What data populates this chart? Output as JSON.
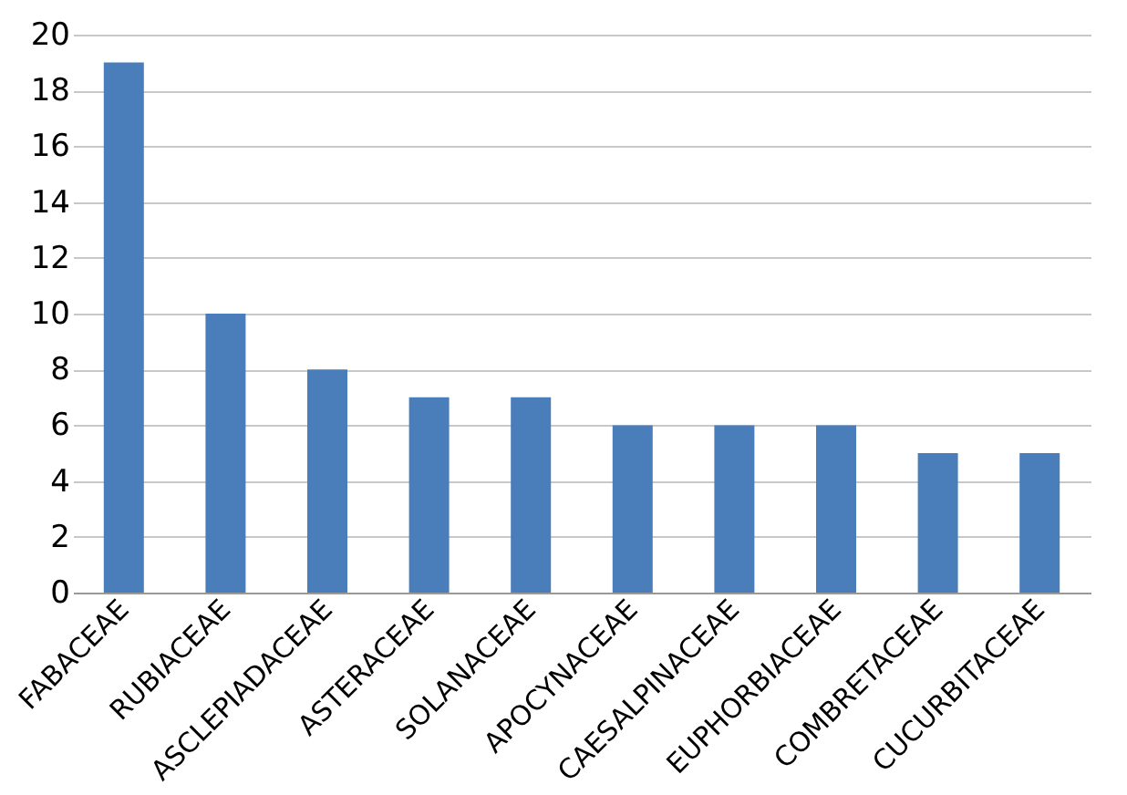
{
  "chart_data": {
    "type": "bar",
    "categories": [
      "FABACEAE",
      "RUBIACEAE",
      "ASCLEPIADACEAE",
      "ASTERACEAE",
      "SOLANACEAE",
      "APOCYNACEAE",
      "CAESALPINACEAE",
      "EUPHORBIACEAE",
      "COMBRETACEAE",
      "CUCURBITACEAE"
    ],
    "values": [
      19,
      10,
      8,
      7,
      7,
      6,
      6,
      6,
      5,
      5
    ],
    "color": "#4a7ebb",
    "ylim": [
      0,
      20
    ],
    "yticks": [
      0,
      2,
      4,
      6,
      8,
      10,
      12,
      14,
      16,
      18,
      20
    ],
    "grid": "y"
  }
}
